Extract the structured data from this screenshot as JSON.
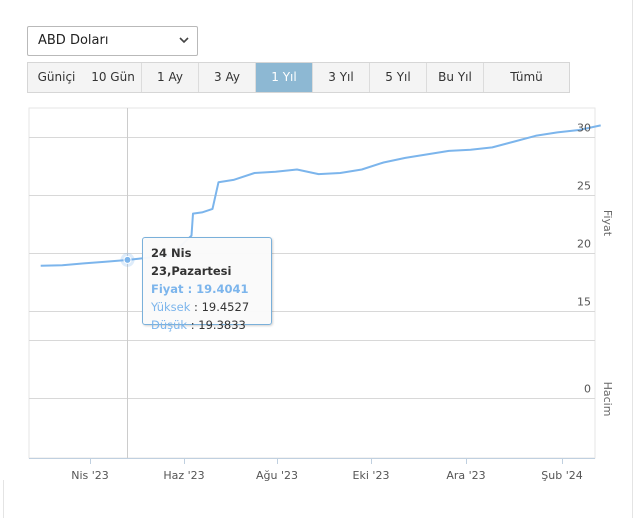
{
  "currency_select": {
    "value": "ABD Doları"
  },
  "range_buttons": [
    {
      "label": "Güniçi",
      "active": false
    },
    {
      "label": "10 Gün",
      "active": false
    },
    {
      "label": "1 Ay",
      "active": false
    },
    {
      "label": "3 Ay",
      "active": false
    },
    {
      "label": "1 Yıl",
      "active": true
    },
    {
      "label": "3 Yıl",
      "active": false
    },
    {
      "label": "5 Yıl",
      "active": false
    },
    {
      "label": "Bu Yıl",
      "active": false
    },
    {
      "label": "Tümü",
      "active": false
    }
  ],
  "tooltip": {
    "title": "24 Nis 23,Pazartesi",
    "main_label": "Fiyat",
    "main_value": "19.4041",
    "rows": [
      {
        "label": "Yüksek",
        "value": "19.4527"
      },
      {
        "label": "Düşük",
        "value": "19.3833"
      }
    ]
  },
  "chart_data": {
    "type": "line",
    "title": "",
    "x_tick_labels": [
      "Nis '23",
      "Haz '23",
      "Ağu '23",
      "Eki '23",
      "Ara '23",
      "Şub '24"
    ],
    "price_axis": {
      "title": "Fiyat",
      "ticks": [
        15,
        20,
        25,
        30
      ],
      "ylim": [
        12.5,
        32.5
      ]
    },
    "volume_axis": {
      "title": "Hacim",
      "ticks": [
        0
      ]
    },
    "grid": true,
    "line_color": "#7cb5ec",
    "series": [
      {
        "x": [
          "2023-02-27",
          "2023-03-13",
          "2023-03-27",
          "2023-04-10",
          "2023-04-24",
          "2023-05-08",
          "2023-05-22",
          "2023-06-05",
          "2023-06-06",
          "2023-06-12",
          "2023-06-19",
          "2023-06-23",
          "2023-07-03",
          "2023-07-17",
          "2023-07-31",
          "2023-08-14",
          "2023-08-28",
          "2023-09-11",
          "2023-09-25",
          "2023-10-09",
          "2023-10-23",
          "2023-11-06",
          "2023-11-20",
          "2023-12-04",
          "2023-12-18",
          "2024-01-01",
          "2024-01-15",
          "2024-01-29",
          "2024-02-12",
          "2024-02-26"
        ],
        "y": [
          18.9,
          18.95,
          19.1,
          19.25,
          19.4,
          19.6,
          19.75,
          21.5,
          23.4,
          23.5,
          23.8,
          26.1,
          26.3,
          26.9,
          27.0,
          27.2,
          26.8,
          26.9,
          27.2,
          27.8,
          28.2,
          28.5,
          28.8,
          28.9,
          29.1,
          29.6,
          30.1,
          30.4,
          30.6,
          31.0
        ]
      }
    ],
    "hover_point": {
      "x": "2023-04-24",
      "y": 19.4041
    }
  }
}
